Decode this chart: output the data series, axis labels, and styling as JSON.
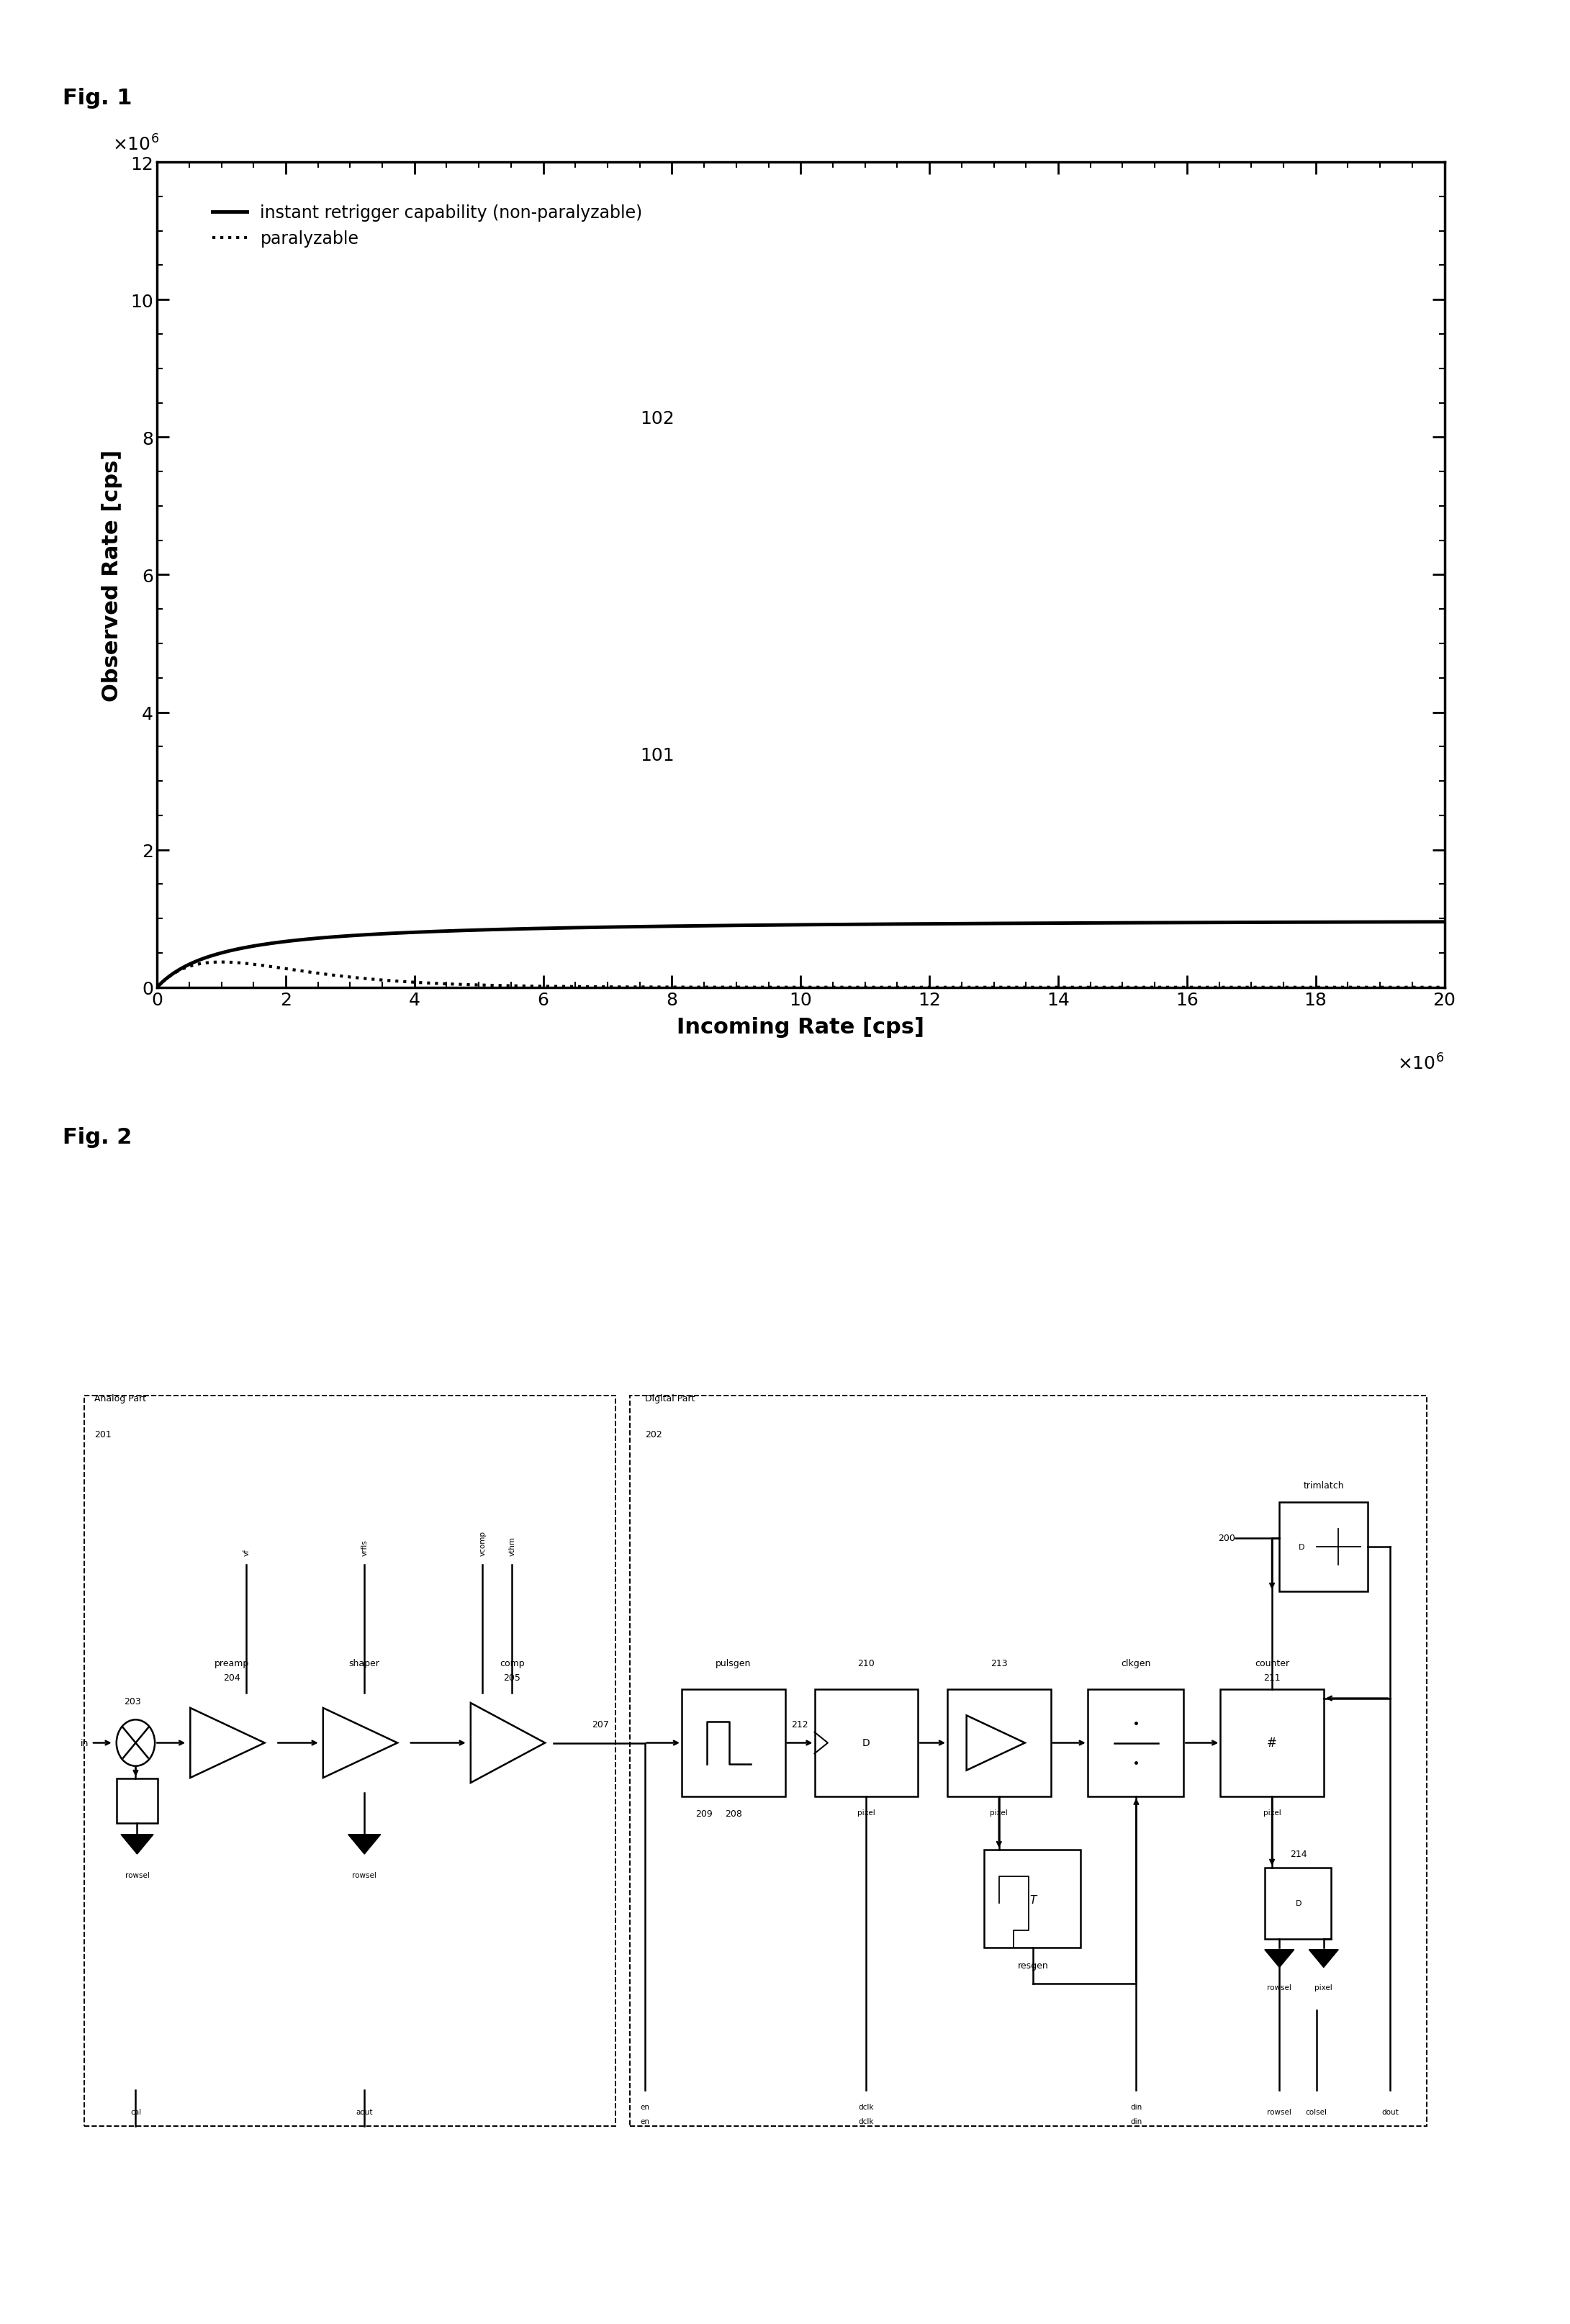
{
  "fig1_title": "Fig. 1",
  "fig2_title": "Fig. 2",
  "xlabel": "Incoming Rate [cps]",
  "ylabel": "Observed Rate [cps]",
  "xlim": [
    0,
    20
  ],
  "ylim": [
    0,
    12
  ],
  "xticks": [
    0,
    2,
    4,
    6,
    8,
    10,
    12,
    14,
    16,
    18,
    20
  ],
  "yticks": [
    0,
    2,
    4,
    6,
    8,
    10,
    12
  ],
  "legend_solid": "instant retrigger capability (non-paralyzable)",
  "legend_dashed": "paralyzable",
  "label_102": "102",
  "label_101": "101",
  "tau": 1e-06,
  "background_color": "#ffffff",
  "line_color": "#000000",
  "tick_fontsize": 18,
  "label_fontsize": 22,
  "fig_label_fontsize": 22
}
